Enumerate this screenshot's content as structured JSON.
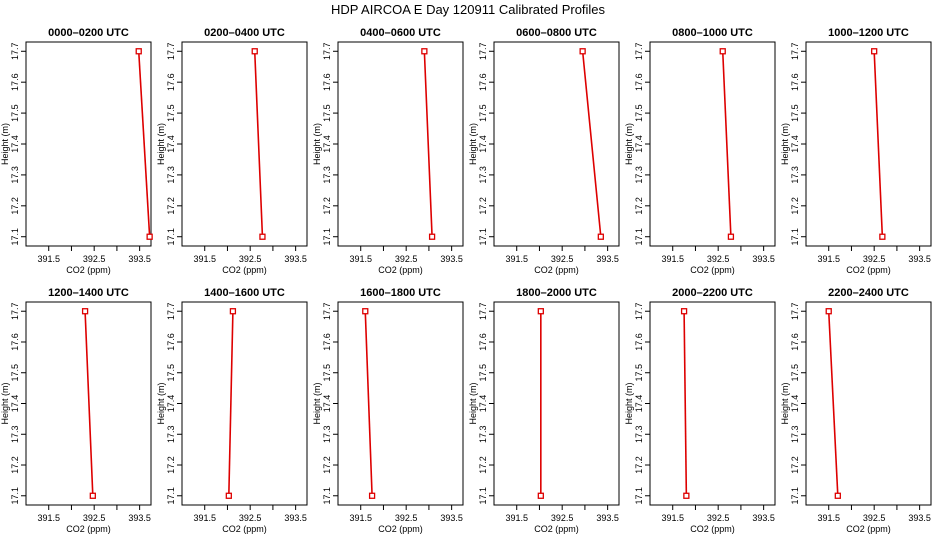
{
  "page": {
    "title": "HDP AIRCOA E  Day 120911  Calibrated Profiles"
  },
  "colors": {
    "series": "#dd0000",
    "axis": "#000000"
  },
  "chart_data": [
    {
      "type": "line",
      "title": "0000–0200 UTC",
      "xlabel": "CO2 (ppm)",
      "ylabel": "Height (m)",
      "xlim": [
        391.0,
        393.75
      ],
      "ylim": [
        17.07,
        17.73
      ],
      "xticks": [
        391.5,
        392.0,
        392.5,
        393.0,
        393.5
      ],
      "xtick_labels": [
        "391.5",
        "",
        "392.5",
        "",
        "393.5"
      ],
      "yticks": [
        17.1,
        17.2,
        17.3,
        17.4,
        17.5,
        17.6,
        17.7
      ],
      "ytick_labels": [
        "17.1",
        "17.2",
        "17.3",
        "17.4",
        "17.5",
        "17.6",
        "17.7"
      ],
      "grid": false,
      "points": [
        {
          "x": 393.48,
          "y": 17.7
        },
        {
          "x": 393.72,
          "y": 17.1
        }
      ]
    },
    {
      "type": "line",
      "title": "0200–0400 UTC",
      "xlabel": "CO2 (ppm)",
      "ylabel": "Height (m)",
      "xlim": [
        391.0,
        393.75
      ],
      "ylim": [
        17.07,
        17.73
      ],
      "xticks": [
        391.5,
        392.0,
        392.5,
        393.0,
        393.5
      ],
      "xtick_labels": [
        "391.5",
        "",
        "392.5",
        "",
        "393.5"
      ],
      "yticks": [
        17.1,
        17.2,
        17.3,
        17.4,
        17.5,
        17.6,
        17.7
      ],
      "ytick_labels": [
        "17.1",
        "17.2",
        "17.3",
        "17.4",
        "17.5",
        "17.6",
        "17.7"
      ],
      "grid": false,
      "points": [
        {
          "x": 392.6,
          "y": 17.7
        },
        {
          "x": 392.77,
          "y": 17.1
        }
      ]
    },
    {
      "type": "line",
      "title": "0400–0600 UTC",
      "xlabel": "CO2 (ppm)",
      "ylabel": "Height (m)",
      "xlim": [
        391.0,
        393.75
      ],
      "ylim": [
        17.07,
        17.73
      ],
      "xticks": [
        391.5,
        392.0,
        392.5,
        393.0,
        393.5
      ],
      "xtick_labels": [
        "391.5",
        "",
        "392.5",
        "",
        "393.5"
      ],
      "yticks": [
        17.1,
        17.2,
        17.3,
        17.4,
        17.5,
        17.6,
        17.7
      ],
      "ytick_labels": [
        "17.1",
        "17.2",
        "17.3",
        "17.4",
        "17.5",
        "17.6",
        "17.7"
      ],
      "grid": false,
      "points": [
        {
          "x": 392.9,
          "y": 17.7
        },
        {
          "x": 393.07,
          "y": 17.1
        }
      ]
    },
    {
      "type": "line",
      "title": "0600–0800 UTC",
      "xlabel": "CO2 (ppm)",
      "ylabel": "Height (m)",
      "xlim": [
        391.0,
        393.75
      ],
      "ylim": [
        17.07,
        17.73
      ],
      "xticks": [
        391.5,
        392.0,
        392.5,
        393.0,
        393.5
      ],
      "xtick_labels": [
        "391.5",
        "",
        "392.5",
        "",
        "393.5"
      ],
      "yticks": [
        17.1,
        17.2,
        17.3,
        17.4,
        17.5,
        17.6,
        17.7
      ],
      "ytick_labels": [
        "17.1",
        "17.2",
        "17.3",
        "17.4",
        "17.5",
        "17.6",
        "17.7"
      ],
      "grid": false,
      "points": [
        {
          "x": 392.95,
          "y": 17.7
        },
        {
          "x": 393.35,
          "y": 17.1
        }
      ]
    },
    {
      "type": "line",
      "title": "0800–1000 UTC",
      "xlabel": "CO2 (ppm)",
      "ylabel": "Height (m)",
      "xlim": [
        391.0,
        393.75
      ],
      "ylim": [
        17.07,
        17.73
      ],
      "xticks": [
        391.5,
        392.0,
        392.5,
        393.0,
        393.5
      ],
      "xtick_labels": [
        "391.5",
        "",
        "392.5",
        "",
        "393.5"
      ],
      "yticks": [
        17.1,
        17.2,
        17.3,
        17.4,
        17.5,
        17.6,
        17.7
      ],
      "ytick_labels": [
        "17.1",
        "17.2",
        "17.3",
        "17.4",
        "17.5",
        "17.6",
        "17.7"
      ],
      "grid": false,
      "points": [
        {
          "x": 392.6,
          "y": 17.7
        },
        {
          "x": 392.78,
          "y": 17.1
        }
      ]
    },
    {
      "type": "line",
      "title": "1000–1200 UTC",
      "xlabel": "CO2 (ppm)",
      "ylabel": "Height (m)",
      "xlim": [
        391.0,
        393.75
      ],
      "ylim": [
        17.07,
        17.73
      ],
      "xticks": [
        391.5,
        392.0,
        392.5,
        393.0,
        393.5
      ],
      "xtick_labels": [
        "391.5",
        "",
        "392.5",
        "",
        "393.5"
      ],
      "yticks": [
        17.1,
        17.2,
        17.3,
        17.4,
        17.5,
        17.6,
        17.7
      ],
      "ytick_labels": [
        "17.1",
        "17.2",
        "17.3",
        "17.4",
        "17.5",
        "17.6",
        "17.7"
      ],
      "grid": false,
      "points": [
        {
          "x": 392.5,
          "y": 17.7
        },
        {
          "x": 392.68,
          "y": 17.1
        }
      ]
    },
    {
      "type": "line",
      "title": "1200–1400 UTC",
      "xlabel": "CO2 (ppm)",
      "ylabel": "Height (m)",
      "xlim": [
        391.0,
        393.75
      ],
      "ylim": [
        17.07,
        17.73
      ],
      "xticks": [
        391.5,
        392.0,
        392.5,
        393.0,
        393.5
      ],
      "xtick_labels": [
        "391.5",
        "",
        "392.5",
        "",
        "393.5"
      ],
      "yticks": [
        17.1,
        17.2,
        17.3,
        17.4,
        17.5,
        17.6,
        17.7
      ],
      "ytick_labels": [
        "17.1",
        "17.2",
        "17.3",
        "17.4",
        "17.5",
        "17.6",
        "17.7"
      ],
      "grid": false,
      "points": [
        {
          "x": 392.3,
          "y": 17.7
        },
        {
          "x": 392.47,
          "y": 17.1
        }
      ]
    },
    {
      "type": "line",
      "title": "1400–1600 UTC",
      "xlabel": "CO2 (ppm)",
      "ylabel": "Height (m)",
      "xlim": [
        391.0,
        393.75
      ],
      "ylim": [
        17.07,
        17.73
      ],
      "xticks": [
        391.5,
        392.0,
        392.5,
        393.0,
        393.5
      ],
      "xtick_labels": [
        "391.5",
        "",
        "392.5",
        "",
        "393.5"
      ],
      "yticks": [
        17.1,
        17.2,
        17.3,
        17.4,
        17.5,
        17.6,
        17.7
      ],
      "ytick_labels": [
        "17.1",
        "17.2",
        "17.3",
        "17.4",
        "17.5",
        "17.6",
        "17.7"
      ],
      "grid": false,
      "points": [
        {
          "x": 392.12,
          "y": 17.7
        },
        {
          "x": 392.03,
          "y": 17.1
        }
      ]
    },
    {
      "type": "line",
      "title": "1600–1800 UTC",
      "xlabel": "CO2 (ppm)",
      "ylabel": "Height (m)",
      "xlim": [
        391.0,
        393.75
      ],
      "ylim": [
        17.07,
        17.73
      ],
      "xticks": [
        391.5,
        392.0,
        392.5,
        393.0,
        393.5
      ],
      "xtick_labels": [
        "391.5",
        "",
        "392.5",
        "",
        "393.5"
      ],
      "yticks": [
        17.1,
        17.2,
        17.3,
        17.4,
        17.5,
        17.6,
        17.7
      ],
      "ytick_labels": [
        "17.1",
        "17.2",
        "17.3",
        "17.4",
        "17.5",
        "17.6",
        "17.7"
      ],
      "grid": false,
      "points": [
        {
          "x": 391.6,
          "y": 17.7
        },
        {
          "x": 391.75,
          "y": 17.1
        }
      ]
    },
    {
      "type": "line",
      "title": "1800–2000 UTC",
      "xlabel": "CO2 (ppm)",
      "ylabel": "Height (m)",
      "xlim": [
        391.0,
        393.75
      ],
      "ylim": [
        17.07,
        17.73
      ],
      "xticks": [
        391.5,
        392.0,
        392.5,
        393.0,
        393.5
      ],
      "xtick_labels": [
        "391.5",
        "",
        "392.5",
        "",
        "393.5"
      ],
      "yticks": [
        17.1,
        17.2,
        17.3,
        17.4,
        17.5,
        17.6,
        17.7
      ],
      "ytick_labels": [
        "17.1",
        "17.2",
        "17.3",
        "17.4",
        "17.5",
        "17.6",
        "17.7"
      ],
      "grid": false,
      "points": [
        {
          "x": 392.03,
          "y": 17.7
        },
        {
          "x": 392.03,
          "y": 17.1
        }
      ]
    },
    {
      "type": "line",
      "title": "2000–2200 UTC",
      "xlabel": "CO2 (ppm)",
      "ylabel": "Height (m)",
      "xlim": [
        391.0,
        393.75
      ],
      "ylim": [
        17.07,
        17.73
      ],
      "xticks": [
        391.5,
        392.0,
        392.5,
        393.0,
        393.5
      ],
      "xtick_labels": [
        "391.5",
        "",
        "392.5",
        "",
        "393.5"
      ],
      "yticks": [
        17.1,
        17.2,
        17.3,
        17.4,
        17.5,
        17.6,
        17.7
      ],
      "ytick_labels": [
        "17.1",
        "17.2",
        "17.3",
        "17.4",
        "17.5",
        "17.6",
        "17.7"
      ],
      "grid": false,
      "points": [
        {
          "x": 391.75,
          "y": 17.7
        },
        {
          "x": 391.8,
          "y": 17.1
        }
      ]
    },
    {
      "type": "line",
      "title": "2200–2400 UTC",
      "xlabel": "CO2 (ppm)",
      "ylabel": "Height (m)",
      "xlim": [
        391.0,
        393.75
      ],
      "ylim": [
        17.07,
        17.73
      ],
      "xticks": [
        391.5,
        392.0,
        392.5,
        393.0,
        393.5
      ],
      "xtick_labels": [
        "391.5",
        "",
        "392.5",
        "",
        "393.5"
      ],
      "yticks": [
        17.1,
        17.2,
        17.3,
        17.4,
        17.5,
        17.6,
        17.7
      ],
      "ytick_labels": [
        "17.1",
        "17.2",
        "17.3",
        "17.4",
        "17.5",
        "17.6",
        "17.7"
      ],
      "grid": false,
      "points": [
        {
          "x": 391.5,
          "y": 17.7
        },
        {
          "x": 391.7,
          "y": 17.1
        }
      ]
    }
  ]
}
